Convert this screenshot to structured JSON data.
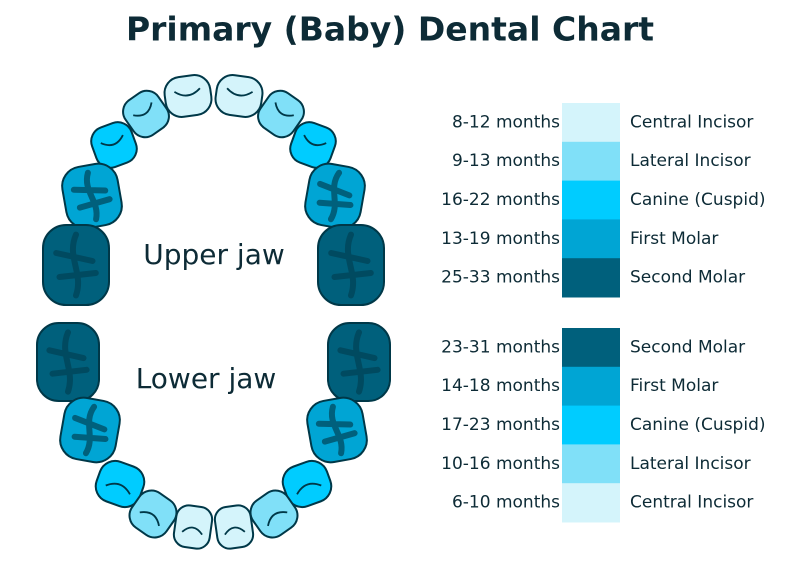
{
  "header": {
    "title": "Primary (Baby) Dental Chart"
  },
  "jaws": [
    {
      "label": "Upper jaw",
      "rows": [
        {
          "age": "8-12 months",
          "tooth": "Central Incisor",
          "color": "#d4f4fb"
        },
        {
          "age": "9-13 months",
          "tooth": "Lateral Incisor",
          "color": "#80e0f8"
        },
        {
          "age": "16-22 months",
          "tooth": "Canine (Cuspid)",
          "color": "#00ccff"
        },
        {
          "age": "13-19 months",
          "tooth": "First Molar",
          "color": "#00a5d4"
        },
        {
          "age": "25-33 months",
          "tooth": "Second Molar",
          "color": "#00607c"
        }
      ]
    },
    {
      "label": "Lower jaw",
      "rows": [
        {
          "age": "23-31 months",
          "tooth": "Second Molar",
          "color": "#00607c"
        },
        {
          "age": "14-18 months",
          "tooth": "First Molar",
          "color": "#00a5d4"
        },
        {
          "age": "17-23 months",
          "tooth": "Canine (Cuspid)",
          "color": "#00ccff"
        },
        {
          "age": "10-16 months",
          "tooth": "Lateral Incisor",
          "color": "#80e0f8"
        },
        {
          "age": "6-10 months",
          "tooth": "Central Incisor",
          "color": "#d4f4fb"
        }
      ]
    }
  ]
}
